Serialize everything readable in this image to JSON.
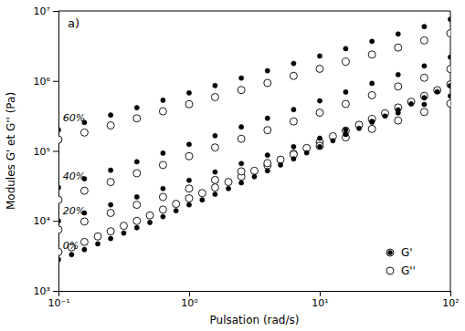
{
  "chart_data": {
    "type": "scatter",
    "title": "a)",
    "x_label": "Pulsation (rad/s)",
    "y_label": "Modules G' et G'' (Pa)",
    "log": true,
    "grid": false,
    "legend": "lower right",
    "xlim": [
      0.1,
      100
    ],
    "ylim": [
      1000,
      10000000
    ],
    "xticks": [
      {
        "value": 0.1,
        "label": "10⁻¹"
      },
      {
        "value": 1,
        "label": "10⁰"
      },
      {
        "value": 10,
        "label": "10¹"
      },
      {
        "value": 100,
        "label": "10²"
      }
    ],
    "yticks": [
      {
        "value": 1000,
        "label": "10³"
      },
      {
        "value": 10000,
        "label": "10⁴"
      },
      {
        "value": 100000,
        "label": "10⁵"
      },
      {
        "value": 1000000,
        "label": "10⁶"
      },
      {
        "value": 10000000,
        "label": "10⁷"
      }
    ],
    "series": [
      {
        "name": "G'",
        "color": "black",
        "marker": "circle",
        "x": [
          0.1,
          0.126,
          0.158,
          0.2,
          0.251,
          0.316,
          0.398,
          0.501,
          0.631,
          0.794,
          1.0,
          1.26,
          1.58,
          2.0,
          2.51,
          3.16,
          3.98,
          5.01,
          6.31,
          7.94,
          10.0,
          12.6,
          15.8,
          20.0,
          25.1,
          31.6,
          39.8,
          50.1,
          63.1,
          79.4,
          100
        ],
        "values": [
          2800,
          3300,
          3900,
          4700,
          5600,
          6700,
          8000,
          9500,
          11500,
          14000,
          17000,
          20000,
          24000,
          29000,
          35000,
          43000,
          52000,
          63000,
          77000,
          94000,
          115000,
          140000,
          172000,
          210000,
          258000,
          315000,
          385000,
          470000,
          575000,
          700000,
          860000
        ]
      },
      {
        "name": "G''",
        "color": "black",
        "marker": "circle-open",
        "x": [
          0.1,
          0.126,
          0.158,
          0.2,
          0.251,
          0.316,
          0.398,
          0.501,
          0.631,
          0.794,
          1.0,
          1.26,
          1.58,
          2.0,
          2.51,
          3.16,
          3.98,
          5.01,
          6.31,
          7.94,
          10.0,
          12.6,
          15.8,
          20.0,
          25.1,
          31.6,
          39.8,
          50.1,
          63.1,
          79.4,
          100
        ],
        "values": [
          3600,
          4200,
          5000,
          6000,
          7100,
          8500,
          10000,
          12000,
          14500,
          17500,
          21000,
          25000,
          30000,
          36000,
          43000,
          52000,
          62000,
          75000,
          91000,
          110000,
          133000,
          162000,
          195000,
          236000,
          285000,
          345000,
          417000,
          504000,
          610000,
          738000,
          893000
        ]
      },
      {
        "name": "G'",
        "color": "black",
        "marker": "circle",
        "x": [
          0.1,
          0.158,
          0.251,
          0.398,
          0.631,
          1.0,
          1.58,
          2.51,
          3.98,
          6.31,
          10.0,
          15.8,
          25.1,
          39.8,
          63.1,
          100
        ],
        "values": [
          10000,
          13000,
          17000,
          22000,
          29000,
          38000,
          50000,
          66000,
          87000,
          115000,
          152000,
          200000,
          264000,
          350000,
          462000,
          610000
        ]
      },
      {
        "name": "G''",
        "color": "black",
        "marker": "circle-open",
        "x": [
          0.1,
          0.158,
          0.251,
          0.398,
          0.631,
          1.0,
          1.58,
          2.51,
          3.98,
          6.31,
          10.0,
          15.8,
          25.1,
          39.8,
          63.1,
          100
        ],
        "values": [
          7500,
          9800,
          13000,
          17000,
          22000,
          29000,
          38500,
          51000,
          67000,
          89000,
          118000,
          156000,
          206000,
          272000,
          360000,
          475000
        ]
      },
      {
        "name": "G'",
        "color": "black",
        "marker": "circle",
        "x": [
          0.1,
          0.158,
          0.251,
          0.398,
          0.631,
          1.0,
          1.58,
          2.51,
          3.98,
          6.31,
          10.0,
          15.8,
          25.1,
          39.8,
          63.1,
          100
        ],
        "values": [
          30000,
          40000,
          53000,
          70000,
          93000,
          124000,
          165000,
          220000,
          293000,
          390000,
          520000,
          693000,
          924000,
          1230000,
          1640000,
          2190000
        ]
      },
      {
        "name": "G''",
        "color": "black",
        "marker": "circle-open",
        "x": [
          0.1,
          0.158,
          0.251,
          0.398,
          0.631,
          1.0,
          1.58,
          2.51,
          3.98,
          6.31,
          10.0,
          15.8,
          25.1,
          39.8,
          63.1,
          100
        ],
        "values": [
          20000,
          27000,
          36000,
          48000,
          63000,
          84000,
          112000,
          149000,
          198000,
          264000,
          352000,
          469000,
          625000,
          833000,
          1110000,
          1480000
        ]
      },
      {
        "name": "G'",
        "color": "black",
        "marker": "circle",
        "x": [
          0.1,
          0.158,
          0.251,
          0.398,
          0.631,
          1.0,
          1.58,
          2.51,
          3.98,
          6.31,
          10.0,
          15.8,
          25.1,
          39.8,
          63.1,
          100
        ],
        "values": [
          200000,
          255000,
          325000,
          415000,
          530000,
          675000,
          860000,
          1100000,
          1400000,
          1780000,
          2270000,
          2890000,
          3680000,
          4690000,
          5970000,
          7600000
        ]
      },
      {
        "name": "G''",
        "color": "black",
        "marker": "circle-open",
        "x": [
          0.1,
          0.158,
          0.251,
          0.398,
          0.631,
          1.0,
          1.58,
          2.51,
          3.98,
          6.31,
          10.0,
          15.8,
          25.1,
          39.8,
          63.1,
          100
        ],
        "values": [
          145000,
          183000,
          231000,
          292000,
          368000,
          465000,
          587000,
          741000,
          936000,
          1180000,
          1490000,
          1880000,
          2380000,
          3000000,
          3790000,
          4790000
        ]
      }
    ],
    "annotations": [
      {
        "text": "60%",
        "x": 0.108,
        "y": 290000
      },
      {
        "text": "40%",
        "x": 0.108,
        "y": 42000
      },
      {
        "text": "20%",
        "x": 0.108,
        "y": 13500
      },
      {
        "text": "0%",
        "x": 0.108,
        "y": 4300
      }
    ]
  }
}
